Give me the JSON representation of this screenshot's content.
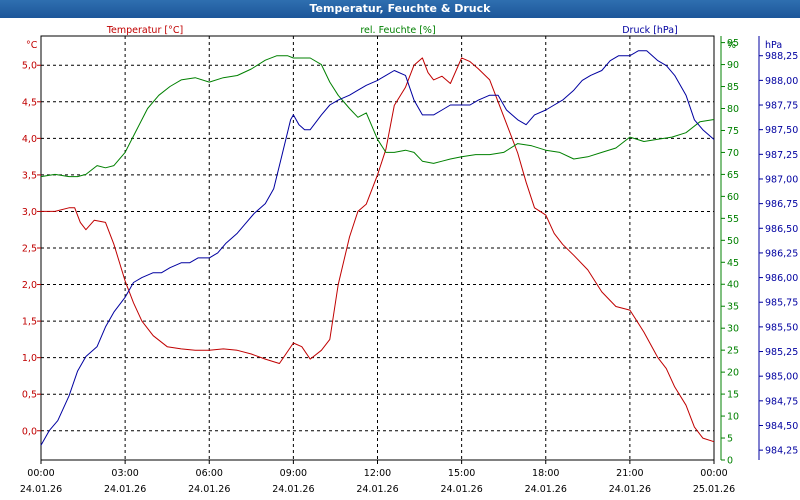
{
  "title": "Temperatur, Feuchte & Druck",
  "colors": {
    "temp": "#c00000",
    "hum": "#008000",
    "press": "#0000a0",
    "grid": "#000000",
    "text": "#000000"
  },
  "chart_data": {
    "type": "line",
    "title": "Temperatur, Feuchte & Druck",
    "x_ticks": [
      {
        "t": 0,
        "time": "00:00",
        "date": "24.01.26"
      },
      {
        "t": 3,
        "time": "03:00",
        "date": "24.01.26"
      },
      {
        "t": 6,
        "time": "06:00",
        "date": "24.01.26"
      },
      {
        "t": 9,
        "time": "09:00",
        "date": "24.01.26"
      },
      {
        "t": 12,
        "time": "12:00",
        "date": "24.01.26"
      },
      {
        "t": 15,
        "time": "15:00",
        "date": "24.01.26"
      },
      {
        "t": 18,
        "time": "18:00",
        "date": "24.01.26"
      },
      {
        "t": 21,
        "time": "21:00",
        "date": "24.01.26"
      },
      {
        "t": 24,
        "time": "00:00",
        "date": "25.01.26"
      }
    ],
    "xlim": [
      0,
      24
    ],
    "axes": {
      "temp": {
        "unit": "°C",
        "label": "Temperatur [°C]",
        "ylim": [
          -0.4,
          5.4
        ],
        "ticks": [
          "0.0",
          "0.5",
          "1.0",
          "1.5",
          "2.0",
          "2.5",
          "3.0",
          "3.5",
          "4.0",
          "4.5",
          "5.0"
        ],
        "tick_labels": [
          "0,0",
          "0,5",
          "1,0",
          "1,5",
          "2,0",
          "2,5",
          "3,0",
          "3,5",
          "4,0",
          "4,5",
          "5,0"
        ]
      },
      "hum": {
        "unit": "%",
        "label": "rel. Feuchte [%]",
        "ylim": [
          0,
          96.5
        ],
        "ticks": [
          "0",
          "5",
          "10",
          "15",
          "20",
          "25",
          "30",
          "35",
          "40",
          "45",
          "50",
          "55",
          "60",
          "65",
          "70",
          "75",
          "80",
          "85",
          "90",
          "95"
        ],
        "tick_labels": [
          "0",
          "5",
          "10",
          "15",
          "20",
          "25",
          "30",
          "35",
          "40",
          "45",
          "50",
          "55",
          "60",
          "65",
          "70",
          "75",
          "80",
          "85",
          "90",
          "95"
        ]
      },
      "press": {
        "unit": "hPa",
        "label": "Druck [hPa]",
        "ylim": [
          984.15,
          988.45
        ],
        "ticks": [
          "984.25",
          "984.5",
          "984.75",
          "985",
          "985.25",
          "985.5",
          "985.75",
          "986",
          "986.25",
          "986.5",
          "986.75",
          "987",
          "987.25",
          "987.5",
          "987.75",
          "988",
          "988.25"
        ],
        "tick_labels": [
          "984,25",
          "984,50",
          "984,75",
          "985,00",
          "985,25",
          "985,50",
          "985,75",
          "986,00",
          "986,25",
          "986,50",
          "986,75",
          "987,00",
          "987,25",
          "987,50",
          "987,75",
          "988,00",
          "988,25"
        ]
      }
    },
    "series": [
      {
        "name": "Temperatur",
        "axis": "temp",
        "x": [
          0,
          0.5,
          1,
          1.2,
          1.4,
          1.6,
          1.9,
          2.3,
          2.6,
          2.8,
          3.0,
          3.3,
          3.6,
          4.0,
          4.5,
          5.0,
          5.5,
          6.0,
          6.5,
          7.0,
          7.5,
          8.0,
          8.5,
          9.0,
          9.3,
          9.6,
          10.0,
          10.3,
          10.6,
          11.0,
          11.3,
          11.6,
          12.0,
          12.3,
          12.6,
          13.0,
          13.3,
          13.6,
          13.8,
          14.0,
          14.3,
          14.6,
          15.0,
          15.3,
          15.6,
          16.0,
          16.3,
          16.6,
          17.0,
          17.3,
          17.6,
          18.0,
          18.3,
          18.6,
          19.0,
          19.5,
          20.0,
          20.5,
          21.0,
          21.5,
          22.0,
          22.3,
          22.6,
          23.0,
          23.3,
          23.6,
          24.0
        ],
        "values": [
          3.0,
          3.0,
          3.05,
          3.05,
          2.85,
          2.75,
          2.88,
          2.85,
          2.55,
          2.3,
          2.05,
          1.75,
          1.5,
          1.3,
          1.15,
          1.12,
          1.1,
          1.1,
          1.12,
          1.1,
          1.05,
          0.98,
          0.92,
          1.2,
          1.15,
          0.98,
          1.1,
          1.25,
          2.0,
          2.65,
          3.0,
          3.1,
          3.5,
          3.85,
          4.45,
          4.7,
          5.0,
          5.1,
          4.9,
          4.8,
          4.85,
          4.75,
          5.1,
          5.05,
          4.95,
          4.8,
          4.5,
          4.2,
          3.8,
          3.4,
          3.05,
          2.95,
          2.7,
          2.55,
          2.4,
          2.2,
          1.9,
          1.7,
          1.65,
          1.35,
          1.0,
          0.85,
          0.6,
          0.35,
          0.05,
          -0.1,
          -0.15
        ]
      },
      {
        "name": "rel. Feuchte",
        "axis": "hum",
        "x": [
          0,
          0.5,
          1,
          1.3,
          1.6,
          2.0,
          2.3,
          2.6,
          3.0,
          3.4,
          3.8,
          4.2,
          4.6,
          5.0,
          5.5,
          6.0,
          6.5,
          7.0,
          7.5,
          8.0,
          8.4,
          8.8,
          9.0,
          9.3,
          9.6,
          10.0,
          10.3,
          10.6,
          11.0,
          11.3,
          11.6,
          12.0,
          12.3,
          12.6,
          13.0,
          13.3,
          13.6,
          14.0,
          14.3,
          14.6,
          15.0,
          15.5,
          16.0,
          16.5,
          17.0,
          17.5,
          18.0,
          18.5,
          19.0,
          19.5,
          20.0,
          20.5,
          21.0,
          21.5,
          22.0,
          22.5,
          23.0,
          23.5,
          24.0
        ],
        "values": [
          64.5,
          65,
          64.5,
          64.5,
          65,
          67,
          66.5,
          67,
          70,
          75,
          80,
          83,
          85,
          86.5,
          87,
          86,
          87,
          87.5,
          89,
          91,
          92,
          92,
          91.5,
          91.5,
          91.5,
          90,
          86,
          83,
          80,
          78,
          79,
          73,
          70,
          70,
          70.5,
          70,
          68,
          67.5,
          68,
          68.5,
          69,
          69.5,
          69.5,
          70,
          72,
          71.5,
          70.5,
          70,
          68.5,
          69,
          70,
          71,
          73.5,
          72.5,
          73,
          73.5,
          74.5,
          77,
          77.5
        ]
      },
      {
        "name": "Druck",
        "axis": "press",
        "x": [
          0,
          0.3,
          0.6,
          1.0,
          1.3,
          1.6,
          2.0,
          2.3,
          2.6,
          3.0,
          3.3,
          3.6,
          4.0,
          4.3,
          4.6,
          5.0,
          5.3,
          5.6,
          6.0,
          6.3,
          6.6,
          7.0,
          7.3,
          7.6,
          8.0,
          8.3,
          8.6,
          8.9,
          9.0,
          9.2,
          9.4,
          9.6,
          10.0,
          10.3,
          10.6,
          11.0,
          11.3,
          11.6,
          12.0,
          12.3,
          12.6,
          13.0,
          13.3,
          13.6,
          14.0,
          14.3,
          14.6,
          15.0,
          15.3,
          15.6,
          16.0,
          16.3,
          16.6,
          17.0,
          17.3,
          17.6,
          18.0,
          18.3,
          18.6,
          19.0,
          19.3,
          19.6,
          20.0,
          20.3,
          20.6,
          21.0,
          21.3,
          21.6,
          22.0,
          22.3,
          22.6,
          23.0,
          23.3,
          23.6,
          24.0
        ],
        "values": [
          984.3,
          984.45,
          984.55,
          984.8,
          985.05,
          985.2,
          985.3,
          985.5,
          985.65,
          985.8,
          985.95,
          986.0,
          986.05,
          986.05,
          986.1,
          986.15,
          986.15,
          986.2,
          986.2,
          986.25,
          986.35,
          986.45,
          986.55,
          986.65,
          986.75,
          986.9,
          987.25,
          987.6,
          987.65,
          987.55,
          987.5,
          987.5,
          987.65,
          987.75,
          987.8,
          987.85,
          987.9,
          987.95,
          988.0,
          988.05,
          988.1,
          988.05,
          987.8,
          987.65,
          987.65,
          987.7,
          987.75,
          987.75,
          987.75,
          987.8,
          987.85,
          987.85,
          987.7,
          987.6,
          987.55,
          987.65,
          987.7,
          987.75,
          987.8,
          987.9,
          988.0,
          988.05,
          988.1,
          988.2,
          988.25,
          988.25,
          988.3,
          988.3,
          988.2,
          988.15,
          988.05,
          987.85,
          987.6,
          987.5,
          987.4
        ]
      }
    ]
  }
}
